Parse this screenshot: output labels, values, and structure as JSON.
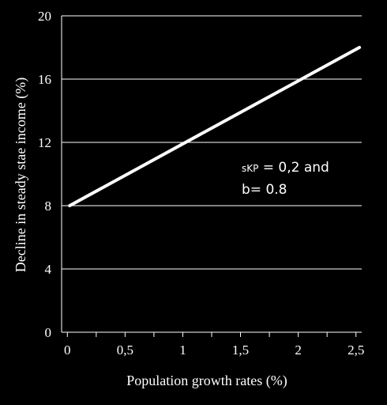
{
  "chart_data": {
    "type": "line",
    "xlabel": "Population growth rates (%)",
    "ylabel": "Decline in steady stae income (%)",
    "x_ticks": [
      "0",
      "0,5",
      "1",
      "1,5",
      "2",
      "2,5"
    ],
    "x_tick_values": [
      0,
      0.5,
      1,
      1.5,
      2,
      2.5
    ],
    "y_ticks": [
      "0",
      "4",
      "8",
      "12",
      "16",
      "20"
    ],
    "y_tick_values": [
      0,
      4,
      8,
      12,
      16,
      20
    ],
    "xlim": [
      -0.05,
      2.55
    ],
    "ylim": [
      0,
      20
    ],
    "grid": "horizontal",
    "series": [
      {
        "x": [
          0.02,
          2.53
        ],
        "y": [
          8.0,
          18.0
        ],
        "color": "#ffffff"
      }
    ],
    "annotation": {
      "line1_main": "s",
      "line1_sub": "KP",
      "line1_rest": " = 0,2 and",
      "line2": "b= 0.8"
    }
  }
}
